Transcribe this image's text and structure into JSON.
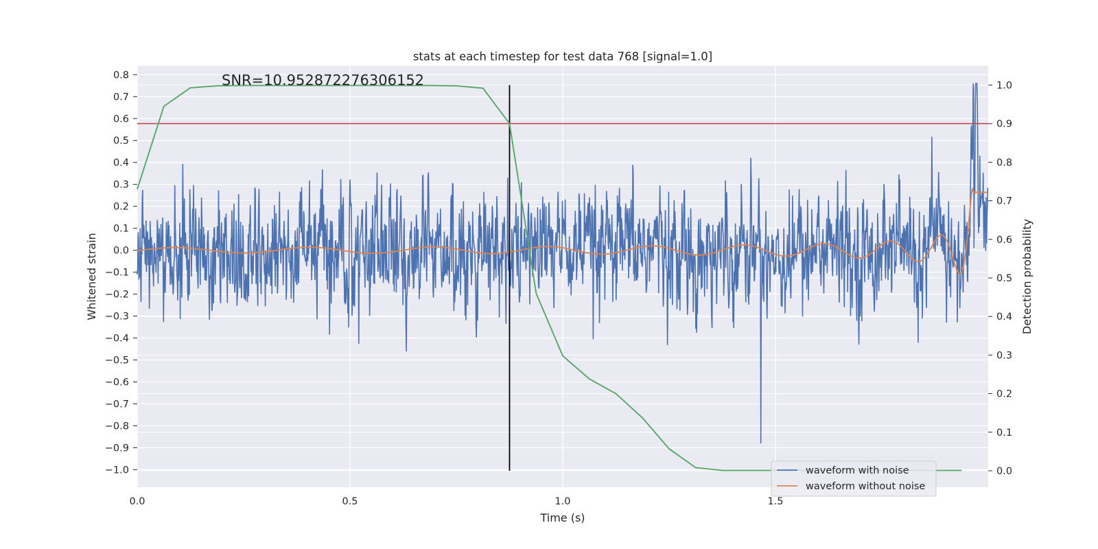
{
  "chart_data": {
    "type": "line",
    "title": "stats at each timestep for test data 768 [signal=1.0]",
    "xlabel": "Time (s)",
    "ylabel": "Whitened strain",
    "y2label": "Detection probability",
    "xlim": [
      0.0,
      2.0
    ],
    "ylim": [
      -1.08,
      0.84
    ],
    "y2lim": [
      0.0,
      1.0
    ],
    "x_ticks": [
      0.0,
      0.5,
      1.0,
      1.5
    ],
    "x_tick_labels": [
      "0.0",
      "0.5",
      "1.0",
      "1.5"
    ],
    "y_ticks": [
      0.8,
      0.7,
      0.6,
      0.5,
      0.4,
      0.3,
      0.2,
      0.1,
      0.0,
      -0.1,
      -0.2,
      -0.3,
      -0.4,
      -0.5,
      -0.6,
      -0.7,
      -0.8,
      -0.9,
      -1.0
    ],
    "y_tick_labels": [
      "0.8",
      "0.7",
      "0.6",
      "0.5",
      "0.4",
      "0.3",
      "0.2",
      "0.1",
      "0.0",
      "−0.1",
      "−0.2",
      "−0.3",
      "−0.4",
      "−0.5",
      "−0.6",
      "−0.7",
      "−0.8",
      "−0.9",
      "−1.0"
    ],
    "y2_ticks": [
      1.0,
      0.9,
      0.8,
      0.7,
      0.6,
      0.5,
      0.4,
      0.3,
      0.2,
      0.1,
      0.0
    ],
    "y2_tick_labels": [
      "1.0",
      "0.9",
      "0.8",
      "0.7",
      "0.6",
      "0.5",
      "0.4",
      "0.3",
      "0.2",
      "0.1",
      "0.0"
    ],
    "grid": true,
    "legend_position": "lower-right",
    "annotation": "SNR=10.952872276306152",
    "threshold_probability": 0.9,
    "detection_time": 0.875,
    "series": [
      {
        "name": "waveform with noise",
        "color": "#4c72b0",
        "axis": "left",
        "description_values": "noisy whitened strain, approx within [-1.0, 0.75], extremes near x=1.97"
      },
      {
        "name": "waveform without noise",
        "color": "#dd8452",
        "axis": "left",
        "chirp_start_freq_hz": 5,
        "chirp_end_amplitude": 0.46
      },
      {
        "color": "#55a868",
        "axis": "right",
        "x": [
          0.0,
          0.0625,
          0.125,
          0.1875,
          0.25,
          0.3125,
          0.375,
          0.4375,
          0.5,
          0.5625,
          0.625,
          0.6875,
          0.75,
          0.8125,
          0.875,
          0.9375,
          1.0,
          1.0625,
          1.125,
          1.1875,
          1.25,
          1.3125,
          1.375,
          1.4375,
          1.5,
          1.5625,
          1.625,
          1.6875,
          1.75,
          1.8125,
          1.875,
          1.9375
        ],
        "y": [
          0.73,
          0.945,
          0.993,
          0.998,
          0.999,
          0.999,
          0.999,
          0.999,
          0.999,
          0.999,
          0.999,
          0.999,
          0.998,
          0.992,
          0.9,
          0.46,
          0.298,
          0.238,
          0.2,
          0.137,
          0.057,
          0.008,
          0.001,
          0.001,
          0.001,
          0.001,
          0.001,
          0.001,
          0.001,
          0.001,
          0.001,
          0.001
        ]
      }
    ],
    "colors": {
      "plot_bg": "#eaeaf2",
      "grid": "#ffffff",
      "threshold": "#c44e52",
      "detection_line": "#000000"
    }
  }
}
